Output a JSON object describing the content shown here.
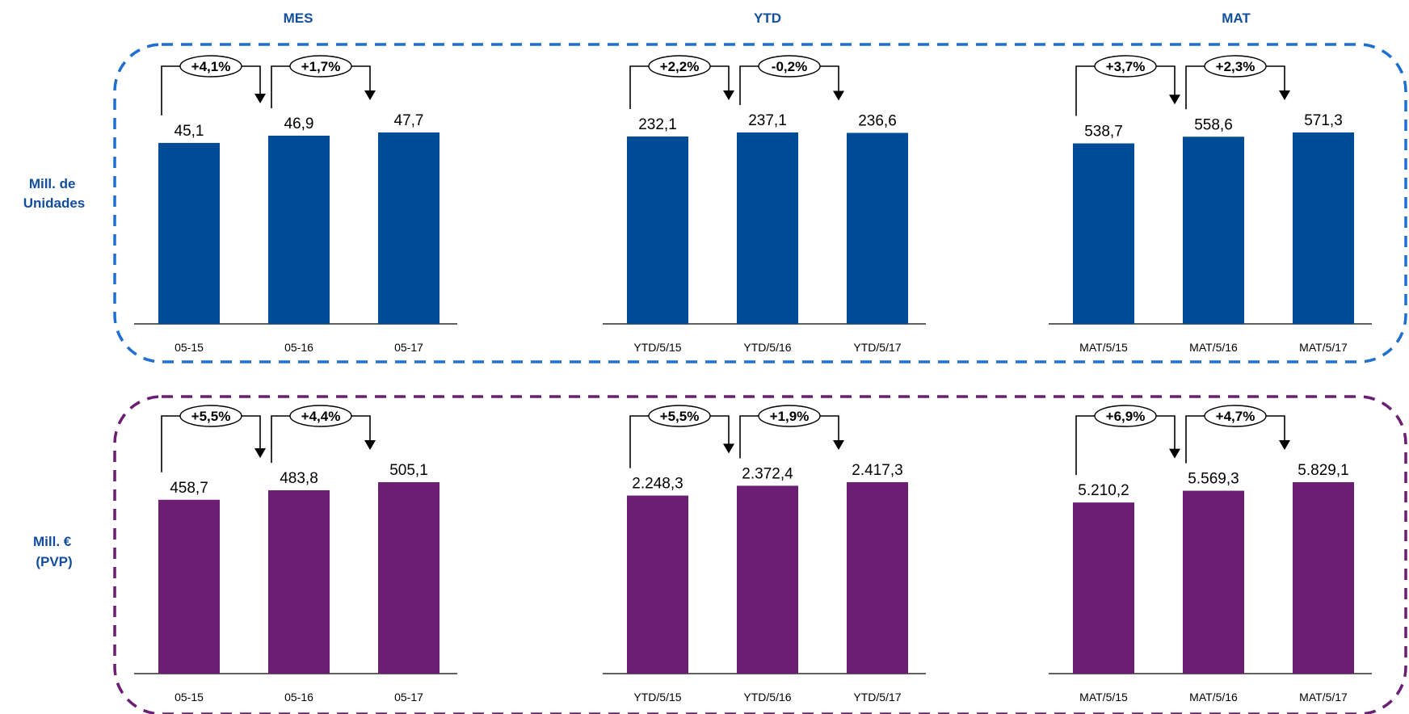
{
  "colors": {
    "units": "#004C97",
    "value": "#6A1F73",
    "units_border": "#1F6FD1",
    "value_border": "#6A1F73",
    "header": "#124E9E"
  },
  "headers": [
    "MES",
    "YTD",
    "MAT"
  ],
  "row_labels": [
    [
      "Mill. de",
      "Unidades"
    ],
    [
      "Mill. €",
      "(PVP)"
    ]
  ],
  "chart_data": [
    {
      "type": "bar",
      "row": "units",
      "panel": "MES",
      "categories": [
        "05-15",
        "05-16",
        "05-17"
      ],
      "values": [
        45.1,
        46.9,
        47.7
      ],
      "value_labels": [
        "45,1",
        "46,9",
        "47,7"
      ],
      "growth": [
        "+4,1%",
        "+1,7%"
      ]
    },
    {
      "type": "bar",
      "row": "units",
      "panel": "YTD",
      "categories": [
        "YTD/5/15",
        "YTD/5/16",
        "YTD/5/17"
      ],
      "values": [
        232.1,
        237.1,
        236.6
      ],
      "value_labels": [
        "232,1",
        "237,1",
        "236,6"
      ],
      "growth": [
        "+2,2%",
        "-0,2%"
      ]
    },
    {
      "type": "bar",
      "row": "units",
      "panel": "MAT",
      "categories": [
        "MAT/5/15",
        "MAT/5/16",
        "MAT/5/17"
      ],
      "values": [
        538.7,
        558.6,
        571.3
      ],
      "value_labels": [
        "538,7",
        "558,6",
        "571,3"
      ],
      "growth": [
        "+3,7%",
        "+2,3%"
      ]
    },
    {
      "type": "bar",
      "row": "value",
      "panel": "MES",
      "categories": [
        "05-15",
        "05-16",
        "05-17"
      ],
      "values": [
        458.7,
        483.8,
        505.1
      ],
      "value_labels": [
        "458,7",
        "483,8",
        "505,1"
      ],
      "growth": [
        "+5,5%",
        "+4,4%"
      ]
    },
    {
      "type": "bar",
      "row": "value",
      "panel": "YTD",
      "categories": [
        "YTD/5/15",
        "YTD/5/16",
        "YTD/5/17"
      ],
      "values": [
        2248.3,
        2372.4,
        2417.3
      ],
      "value_labels": [
        "2.248,3",
        "2.372,4",
        "2.417,3"
      ],
      "growth": [
        "+5,5%",
        "+1,9%"
      ]
    },
    {
      "type": "bar",
      "row": "value",
      "panel": "MAT",
      "categories": [
        "MAT/5/15",
        "MAT/5/16",
        "MAT/5/17"
      ],
      "values": [
        5210.2,
        5569.3,
        5829.1
      ],
      "value_labels": [
        "5.210,2",
        "5.569,3",
        "5.829,1"
      ],
      "growth": [
        "+6,9%",
        "+4,7%"
      ]
    }
  ]
}
